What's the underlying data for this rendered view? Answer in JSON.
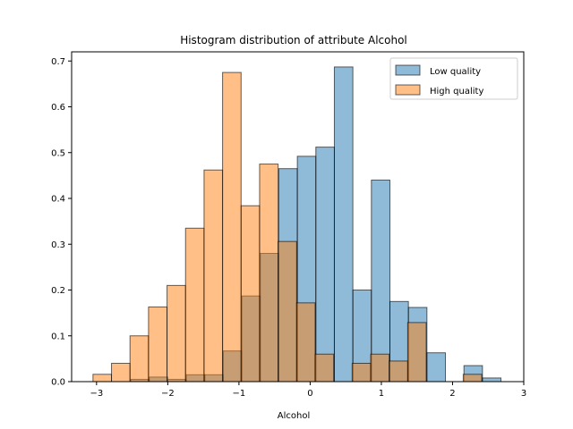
{
  "chart_data": {
    "type": "bar",
    "title": "Histogram distribution of attribute Alcohol",
    "xlabel": "Alcohol",
    "ylabel": "",
    "xlim": [
      -3.35,
      3.0
    ],
    "ylim": [
      0,
      0.72
    ],
    "xticks": [
      -3,
      -2,
      -1,
      0,
      1,
      2,
      3
    ],
    "yticks": [
      0.0,
      0.1,
      0.2,
      0.3,
      0.4,
      0.5,
      0.6,
      0.7
    ],
    "xtick_labels": [
      "−3",
      "−2",
      "−1",
      "0",
      "1",
      "2",
      "3"
    ],
    "ytick_labels": [
      "0.0",
      "0.1",
      "0.2",
      "0.3",
      "0.4",
      "0.5",
      "0.6",
      "0.7"
    ],
    "grid": false,
    "legend_position": "top-right",
    "series": [
      {
        "name": "Low quality",
        "color": "#1f77b4",
        "bins": [
          {
            "x0": -2.52,
            "x1": -2.26,
            "y": 0.005
          },
          {
            "x0": -2.26,
            "x1": -2.0,
            "y": 0.01
          },
          {
            "x0": -2.0,
            "x1": -1.74,
            "y": 0.005
          },
          {
            "x0": -1.74,
            "x1": -1.48,
            "y": 0.015
          },
          {
            "x0": -1.48,
            "x1": -1.22,
            "y": 0.015
          },
          {
            "x0": -1.22,
            "x1": -0.96,
            "y": 0.067
          },
          {
            "x0": -0.96,
            "x1": -0.7,
            "y": 0.187
          },
          {
            "x0": -0.7,
            "x1": -0.44,
            "y": 0.28
          },
          {
            "x0": -0.44,
            "x1": -0.18,
            "y": 0.465
          },
          {
            "x0": -0.18,
            "x1": 0.08,
            "y": 0.492
          },
          {
            "x0": 0.08,
            "x1": 0.34,
            "y": 0.512
          },
          {
            "x0": 0.34,
            "x1": 0.6,
            "y": 0.687
          },
          {
            "x0": 0.6,
            "x1": 0.86,
            "y": 0.2
          },
          {
            "x0": 0.86,
            "x1": 1.12,
            "y": 0.44
          },
          {
            "x0": 1.12,
            "x1": 1.38,
            "y": 0.175
          },
          {
            "x0": 1.38,
            "x1": 1.64,
            "y": 0.162
          },
          {
            "x0": 1.64,
            "x1": 1.9,
            "y": 0.063
          },
          {
            "x0": 2.16,
            "x1": 2.42,
            "y": 0.035
          },
          {
            "x0": 2.42,
            "x1": 2.68,
            "y": 0.008
          }
        ]
      },
      {
        "name": "High quality",
        "color": "#ff7f0e",
        "bins": [
          {
            "x0": -3.05,
            "x1": -2.79,
            "y": 0.016
          },
          {
            "x0": -2.79,
            "x1": -2.53,
            "y": 0.04
          },
          {
            "x0": -2.53,
            "x1": -2.27,
            "y": 0.1
          },
          {
            "x0": -2.27,
            "x1": -2.01,
            "y": 0.163
          },
          {
            "x0": -2.01,
            "x1": -1.75,
            "y": 0.21
          },
          {
            "x0": -1.75,
            "x1": -1.49,
            "y": 0.335
          },
          {
            "x0": -1.49,
            "x1": -1.23,
            "y": 0.462
          },
          {
            "x0": -1.23,
            "x1": -0.97,
            "y": 0.675
          },
          {
            "x0": -0.97,
            "x1": -0.71,
            "y": 0.384
          },
          {
            "x0": -0.71,
            "x1": -0.45,
            "y": 0.475
          },
          {
            "x0": -0.45,
            "x1": -0.19,
            "y": 0.306
          },
          {
            "x0": -0.19,
            "x1": 0.07,
            "y": 0.172
          },
          {
            "x0": 0.07,
            "x1": 0.33,
            "y": 0.06
          },
          {
            "x0": 0.33,
            "x1": 0.59,
            "y": 0.0
          },
          {
            "x0": 0.59,
            "x1": 0.85,
            "y": 0.04
          },
          {
            "x0": 0.85,
            "x1": 1.11,
            "y": 0.06
          },
          {
            "x0": 1.11,
            "x1": 1.37,
            "y": 0.045
          },
          {
            "x0": 1.37,
            "x1": 1.63,
            "y": 0.129
          },
          {
            "x0": 2.15,
            "x1": 2.41,
            "y": 0.016
          }
        ]
      }
    ]
  }
}
